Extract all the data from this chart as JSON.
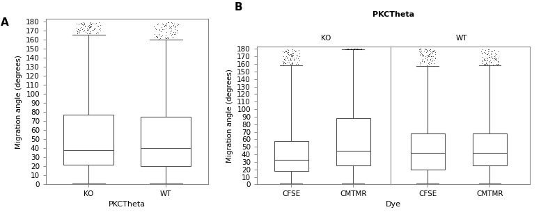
{
  "panel_A": {
    "label": "A",
    "xlabel": "PKCTheta",
    "ylabel": "Migration angle (degrees)",
    "ylim": [
      0,
      183
    ],
    "yticks": [
      0,
      10,
      20,
      30,
      40,
      50,
      60,
      70,
      80,
      90,
      100,
      110,
      120,
      130,
      140,
      150,
      160,
      170,
      180
    ],
    "groups": [
      "KO",
      "WT"
    ],
    "boxes": [
      {
        "median": 38,
        "q1": 22,
        "q3": 77,
        "whisker_low": 1,
        "whisker_high": 166,
        "flier_low": 167,
        "flier_high": 180
      },
      {
        "median": 40,
        "q1": 20,
        "q3": 75,
        "whisker_low": 1,
        "whisker_high": 160,
        "flier_low": 161,
        "flier_high": 180
      }
    ]
  },
  "panel_B": {
    "label": "B",
    "title": "PKCTheta",
    "xlabel": "Dye",
    "ylabel": "Migration angle (degrees)",
    "ylim": [
      0,
      183
    ],
    "yticks": [
      0,
      10,
      20,
      30,
      40,
      50,
      60,
      70,
      80,
      90,
      100,
      110,
      120,
      130,
      140,
      150,
      160,
      170,
      180
    ],
    "group_labels": [
      "KO",
      "WT"
    ],
    "group_centers": [
      1.5,
      3.5
    ],
    "subgroup_labels": [
      "CFSE",
      "CMTMR",
      "CFSE",
      "CMTMR"
    ],
    "boxes": [
      {
        "median": 33,
        "q1": 18,
        "q3": 58,
        "whisker_low": 1,
        "whisker_high": 158,
        "flier_low": 159,
        "flier_high": 180
      },
      {
        "median": 45,
        "q1": 25,
        "q3": 88,
        "whisker_low": 1,
        "whisker_high": 179,
        "flier_low": 179,
        "flier_high": 180
      },
      {
        "median": 42,
        "q1": 20,
        "q3": 68,
        "whisker_low": 1,
        "whisker_high": 157,
        "flier_low": 158,
        "flier_high": 180
      },
      {
        "median": 42,
        "q1": 25,
        "q3": 68,
        "whisker_low": 1,
        "whisker_high": 158,
        "flier_low": 158,
        "flier_high": 180
      }
    ],
    "header_color": "#c8c8be",
    "bg_color": "#c8c8be"
  },
  "figure_bg": "#ffffff",
  "line_color": "#555555",
  "flier_color": "#111111",
  "fontsize": 7.5,
  "label_fontsize": 10
}
